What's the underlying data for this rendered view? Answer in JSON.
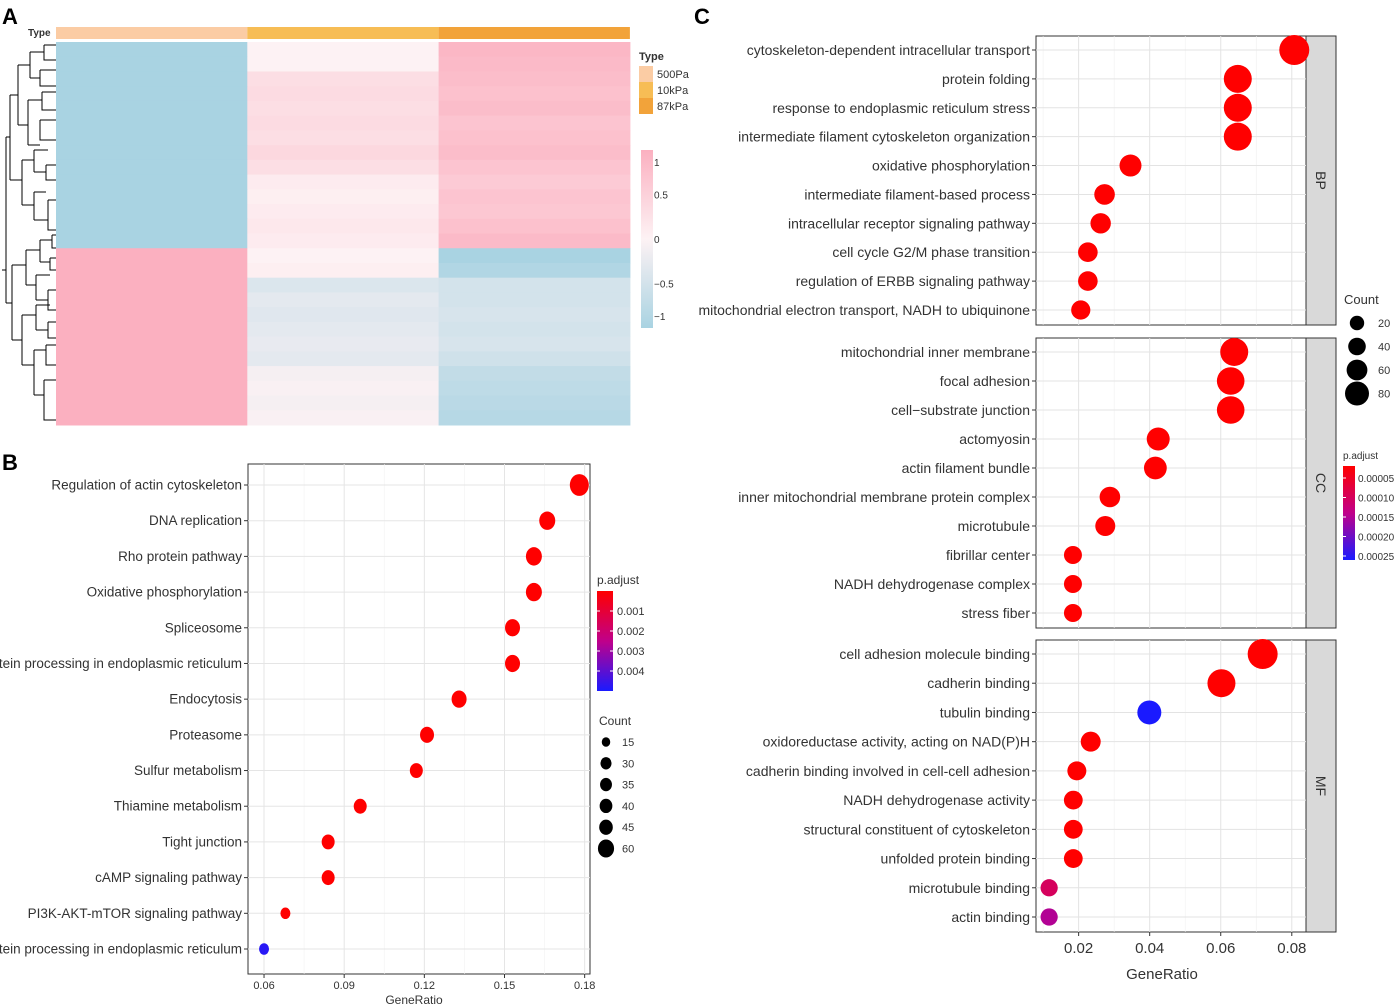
{
  "panels": {
    "A": "A",
    "B": "B",
    "C": "C"
  },
  "colors": {
    "low": "#a9d3e2",
    "mid": "#fdf2f4",
    "high": "#fbb0c0",
    "bg_panel": "#ebebeb",
    "strip": "#d9d9d9",
    "dot_red": "#ff0000",
    "dot_blue": "#0000ff"
  },
  "heatmap": {
    "annotation_label": "Type",
    "legend_title": "Type",
    "groups": [
      {
        "label": "500Pa",
        "color": "#fbcca4"
      },
      {
        "label": "10kPa",
        "color": "#f7bd55"
      },
      {
        "label": "87kPa",
        "color": "#f2a33a"
      }
    ],
    "scale_ticks": [
      "1",
      "0.5",
      "0",
      "−0.5",
      "−1"
    ],
    "scale_values": [
      1,
      0.5,
      0,
      -0.5,
      -1
    ],
    "rows": [
      [
        -1,
        0.0,
        0.9
      ],
      [
        -1,
        0.0,
        0.85
      ],
      [
        -1,
        0.3,
        0.8
      ],
      [
        -1,
        0.35,
        0.75
      ],
      [
        -1,
        0.3,
        0.8
      ],
      [
        -1,
        0.35,
        0.7
      ],
      [
        -1,
        0.3,
        0.75
      ],
      [
        -1,
        0.4,
        0.8
      ],
      [
        -1,
        0.3,
        0.7
      ],
      [
        -1,
        0.1,
        0.6
      ],
      [
        -1,
        0.05,
        0.7
      ],
      [
        -1,
        0.1,
        0.65
      ],
      [
        -1,
        0.15,
        0.75
      ],
      [
        -1,
        0.1,
        0.85
      ],
      [
        1,
        0.0,
        -1
      ],
      [
        1,
        0.05,
        -0.9
      ],
      [
        1,
        -0.4,
        -0.5
      ],
      [
        1,
        -0.3,
        -0.5
      ],
      [
        1,
        -0.35,
        -0.45
      ],
      [
        1,
        -0.3,
        -0.5
      ],
      [
        1,
        -0.25,
        -0.45
      ],
      [
        1,
        -0.3,
        -0.55
      ],
      [
        1,
        -0.1,
        -0.7
      ],
      [
        1,
        -0.05,
        -0.75
      ],
      [
        1,
        -0.1,
        -0.8
      ],
      [
        1,
        -0.05,
        -0.85
      ]
    ]
  },
  "chart_data": [
    {
      "panel": "B",
      "type": "scatter",
      "xlabel": "GeneRatio",
      "xlim": [
        0.054,
        0.182
      ],
      "xticks": [
        0.06,
        0.09,
        0.12,
        0.15,
        0.18
      ],
      "xtick_labels": [
        "0.06",
        "0.09",
        "0.12",
        "0.15",
        "0.18"
      ],
      "categories": [
        "Regulation of actin cytoskeleton",
        "DNA replication",
        "Rho protein pathway",
        "Oxidative phosphorylation",
        "Spliceosome",
        "Protein processing in endoplasmic reticulum",
        "Endocytosis",
        "Proteasome",
        "Sulfur metabolism",
        "Thiamine metabolism",
        "Tight junction",
        "cAMP signaling pathway",
        "PI3K-AKT-mTOR signaling pathway",
        "Protein processing in endoplasmic reticulum"
      ],
      "x": [
        0.178,
        0.166,
        0.161,
        0.161,
        0.153,
        0.153,
        0.133,
        0.121,
        0.117,
        0.096,
        0.084,
        0.084,
        0.068,
        0.06
      ],
      "count": [
        60,
        45,
        45,
        45,
        40,
        40,
        40,
        35,
        30,
        30,
        30,
        30,
        15,
        15
      ],
      "p_adjust": [
        0.0003,
        0.0003,
        0.0003,
        0.0003,
        0.0003,
        0.0003,
        0.0003,
        0.0003,
        0.0003,
        0.0003,
        0.0003,
        0.0003,
        0.0003,
        0.0048
      ],
      "color_legend": {
        "title": "p.adjust",
        "ticks": [
          "0.001",
          "0.002",
          "0.003",
          "0.004"
        ],
        "values": [
          0.001,
          0.002,
          0.003,
          0.004
        ]
      },
      "size_legend": {
        "title": "Count",
        "labels": [
          "15",
          "30",
          "35",
          "40",
          "45",
          "60"
        ],
        "values": [
          15,
          30,
          35,
          40,
          45,
          60
        ]
      }
    },
    {
      "panel": "C",
      "type": "scatter",
      "xlabel": "GeneRatio",
      "xlim": [
        0.008,
        0.084
      ],
      "xticks": [
        0.02,
        0.04,
        0.06,
        0.08
      ],
      "xtick_labels": [
        "0.02",
        "0.04",
        "0.06",
        "0.08"
      ],
      "facets": [
        {
          "strip": "BP",
          "categories": [
            "cytoskeleton-dependent intracellular transport",
            "protein folding",
            "response to endoplasmic reticulum stress",
            "intermediate filament cytoskeleton organization",
            "oxidative phosphorylation",
            "intermediate filament-based process",
            "intracellular receptor signaling pathway",
            "cell cycle G2/M phase transition",
            "regulation of ERBB signaling pathway",
            "mitochondrial electron transport, NADH to ubiquinone"
          ],
          "x": [
            0.0807,
            0.0648,
            0.0648,
            0.0648,
            0.0346,
            0.0273,
            0.0262,
            0.0226,
            0.0226,
            0.0206
          ],
          "count": [
            80,
            70,
            70,
            70,
            40,
            33,
            32,
            28,
            28,
            26
          ],
          "p_adjust": [
            1e-05,
            1e-05,
            1e-05,
            1e-05,
            1e-05,
            1e-05,
            1e-05,
            1e-05,
            1e-05,
            1e-05
          ]
        },
        {
          "strip": "CC",
          "categories": [
            "mitochondrial inner membrane",
            "focal adhesion",
            "cell−substrate junction",
            "actomyosin",
            "actin filament bundle",
            "inner mitochondrial membrane protein complex",
            "microtubule",
            "fibrillar center",
            "NADH dehydrogenase complex",
            "stress fiber"
          ],
          "x": [
            0.0638,
            0.0628,
            0.0628,
            0.0424,
            0.0416,
            0.0288,
            0.0275,
            0.0184,
            0.0184,
            0.0184
          ],
          "count": [
            70,
            68,
            68,
            45,
            44,
            33,
            30,
            20,
            20,
            20
          ],
          "p_adjust": [
            1e-05,
            1e-05,
            1e-05,
            1e-05,
            1e-05,
            1e-05,
            1e-05,
            1e-05,
            1e-05,
            1e-05
          ]
        },
        {
          "strip": "MF",
          "categories": [
            "cell adhesion molecule binding",
            "cadherin binding",
            "tubulin binding",
            "oxidoreductase activity, acting on NAD(P)H",
            "cadherin binding involved in cell-cell adhesion",
            "NADH dehydrogenase activity",
            "structural constituent of cytoskeleton",
            "unfolded protein binding",
            "microtubule binding",
            "actin binding"
          ],
          "x": [
            0.0718,
            0.0602,
            0.0399,
            0.0234,
            0.0195,
            0.0185,
            0.0185,
            0.0185,
            0.0117,
            0.0117
          ],
          "count": [
            80,
            70,
            50,
            30,
            25,
            24,
            24,
            24,
            16,
            16
          ],
          "p_adjust": [
            1e-05,
            1e-05,
            0.00025,
            1e-05,
            1e-05,
            1e-05,
            1e-05,
            1e-05,
            9e-05,
            0.00014
          ]
        }
      ],
      "size_legend": {
        "title": "Count",
        "labels": [
          "20",
          "40",
          "60",
          "80"
        ],
        "values": [
          20,
          40,
          60,
          80
        ]
      },
      "color_legend": {
        "title": "p.adjust",
        "ticks": [
          "0.00005",
          "0.00010",
          "0.00015",
          "0.00020",
          "0.00025"
        ],
        "values": [
          5e-05,
          0.0001,
          0.00015,
          0.0002,
          0.00025
        ]
      }
    }
  ]
}
